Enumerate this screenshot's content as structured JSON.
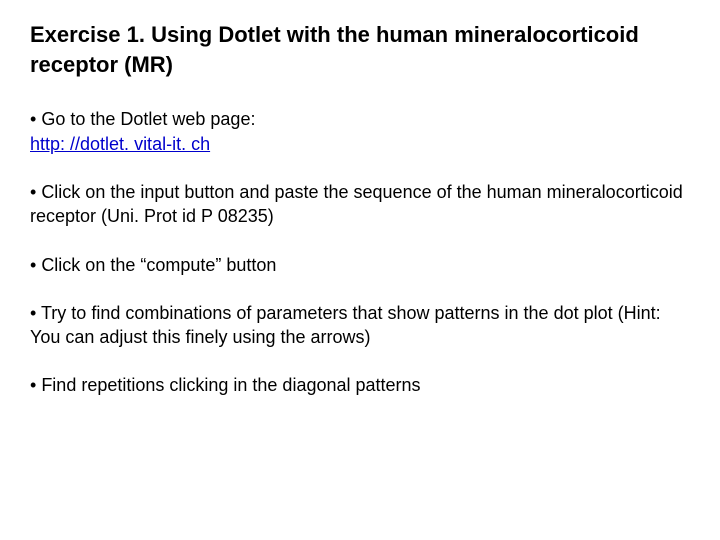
{
  "title": "Exercise 1. Using Dotlet with the human mineralocorticoid receptor (MR)",
  "items": [
    {
      "prefix": "• ",
      "text_before": "Go to the Dotlet web page: ",
      "link": "http: //dotlet. vital-it. ch",
      "has_link": true
    },
    {
      "prefix": "• ",
      "text": "Click on the input button and paste the sequence of the human mineralocorticoid receptor (Uni. Prot id P 08235)"
    },
    {
      "prefix": "• ",
      "text": "Click on the “compute” button"
    },
    {
      "prefix": "• ",
      "text": "Try to find combinations of parameters that show patterns in the dot plot (Hint: You can adjust this finely using the arrows)"
    },
    {
      "prefix": "• ",
      "text": "Find repetitions clicking in the diagonal patterns"
    }
  ]
}
